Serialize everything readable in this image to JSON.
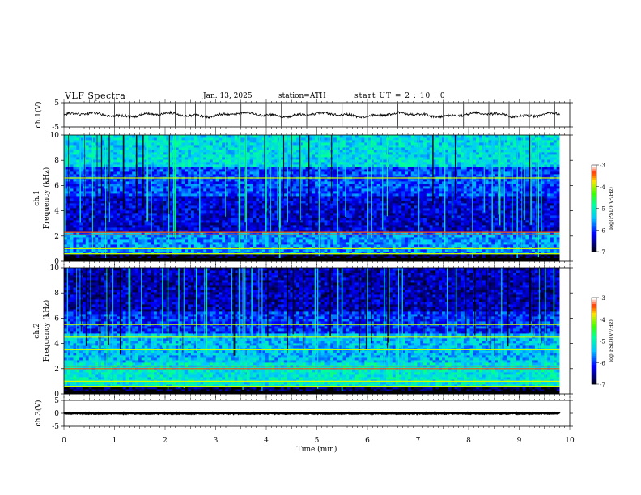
{
  "header": {
    "title": "VLF  Spectra",
    "date": "Jan. 13, 2025",
    "station": "station=ATH",
    "start_ut": "start  UT  =   2  : 10 : 0"
  },
  "chart_data": {
    "type": "heatmap",
    "xlabel": "Time  (min)",
    "xlim": [
      0,
      10
    ],
    "x_ticks": [
      "0",
      "1",
      "2",
      "3",
      "4",
      "5",
      "6",
      "7",
      "8",
      "9",
      "10"
    ],
    "data_extent_min": 9.8,
    "panels": {
      "ch1_wave": {
        "type": "line",
        "ylabel": "ch.1(V)",
        "ylim": [
          -5,
          5
        ],
        "y_ticks": [
          "5",
          "-5"
        ],
        "baseline_level": 0,
        "spike_times_min": [
          1.0,
          1.3,
          1.9,
          2.2,
          2.4,
          2.6,
          2.8,
          3.5,
          4.0,
          4.3,
          4.8,
          5.5,
          6.0,
          6.6,
          7.5,
          7.9,
          8.4,
          8.8,
          9.2,
          9.7
        ]
      },
      "ch1_spec": {
        "ylabel": "ch.1\nFrequency (kHz)",
        "ylim_khz": [
          0,
          10
        ],
        "y_ticks": [
          "0",
          "2",
          "4",
          "6",
          "8",
          "10"
        ],
        "lines_khz": [
          2.1,
          2.3,
          1.0,
          6.6,
          0.6
        ],
        "colorbar": {
          "label": "log(PSD)(V²/Hz)",
          "ticks": [
            "-3",
            "-4",
            "-5",
            "-6",
            "-7"
          ],
          "range": [
            -7,
            -3
          ]
        }
      },
      "ch2_spec": {
        "ylabel": "ch.2\nFrequency (kHz)",
        "ylim_khz": [
          0,
          10
        ],
        "y_ticks": [
          "0",
          "2",
          "4",
          "6",
          "8",
          "10"
        ],
        "lines_khz": [
          2.0,
          2.2,
          3.5,
          4.5,
          1.0,
          5.5,
          0.6
        ],
        "colorbar": {
          "label": "log(PSD)(V²/Hz)",
          "ticks": [
            "-3",
            "-4",
            "-5",
            "-6",
            "-7"
          ],
          "range": [
            -7,
            -3
          ]
        }
      },
      "ch3_wave": {
        "type": "line",
        "ylabel": "ch.3(V)",
        "ylim": [
          -5,
          5
        ],
        "y_ticks": [
          "5",
          "0",
          "-5"
        ],
        "baseline_level": 0
      }
    }
  }
}
